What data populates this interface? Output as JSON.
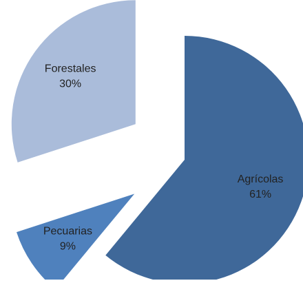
{
  "chart_data": {
    "type": "pie",
    "categories": [
      "Agrícolas",
      "Pecuarias",
      "Forestales"
    ],
    "values": [
      61,
      9,
      30
    ],
    "value_labels": [
      "61%",
      "9%",
      "30%"
    ],
    "colors": [
      "#3f6899",
      "#4f81bd",
      "#aabcda"
    ],
    "explode": [
      false,
      true,
      true
    ]
  }
}
